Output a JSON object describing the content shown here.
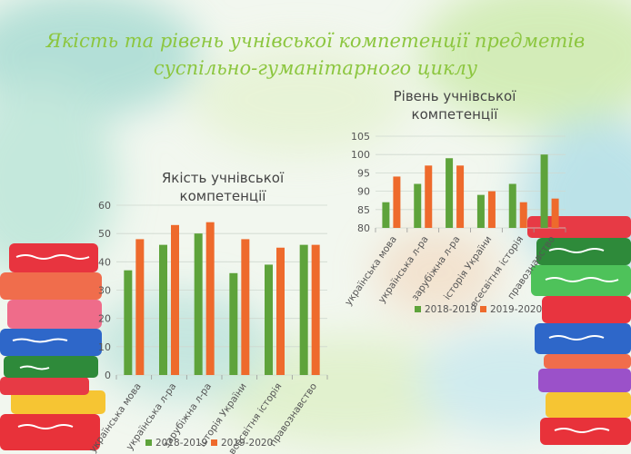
{
  "slide": {
    "title_line1": "Якість та рівень учнівської компетенції  предметів",
    "title_line2": "суспільно-гуманітарного циклу"
  },
  "colors": {
    "series_2018": "#5ea33b",
    "series_2019": "#ee6a2c",
    "title": "#8cc63f"
  },
  "chart_data": [
    {
      "type": "bar",
      "title_line1": "Якість учнівської",
      "title_line2": "компетенції",
      "categories": [
        "українська мова",
        "українська л-ра",
        "зарубіжна л-ра",
        "історія України",
        "всесвітня історія",
        "правознавство"
      ],
      "series": [
        {
          "name": "2018-2019",
          "values": [
            37,
            46,
            50,
            36,
            39,
            46
          ]
        },
        {
          "name": "2019-2020",
          "values": [
            48,
            53,
            54,
            48,
            45,
            46
          ]
        }
      ],
      "ylim": [
        0,
        60
      ],
      "yticks": [
        0,
        10,
        20,
        30,
        40,
        50,
        60
      ],
      "grid": true,
      "legend": "bottom"
    },
    {
      "type": "bar",
      "title_line1": "Рівень учнівської",
      "title_line2": "компетенції",
      "categories": [
        "українська мова",
        "українська л-ра",
        "зарубіжна л-ра",
        "історія України",
        "всесвітня історія",
        "правознавство"
      ],
      "series": [
        {
          "name": "2018-2019",
          "values": [
            87,
            92,
            99,
            89,
            92,
            100
          ]
        },
        {
          "name": "2019-2020",
          "values": [
            94,
            97,
            97,
            90,
            87,
            88
          ]
        }
      ],
      "ylim": [
        80,
        105
      ],
      "yticks": [
        80,
        85,
        90,
        95,
        100,
        105
      ],
      "grid": true,
      "legend": "bottom"
    }
  ]
}
